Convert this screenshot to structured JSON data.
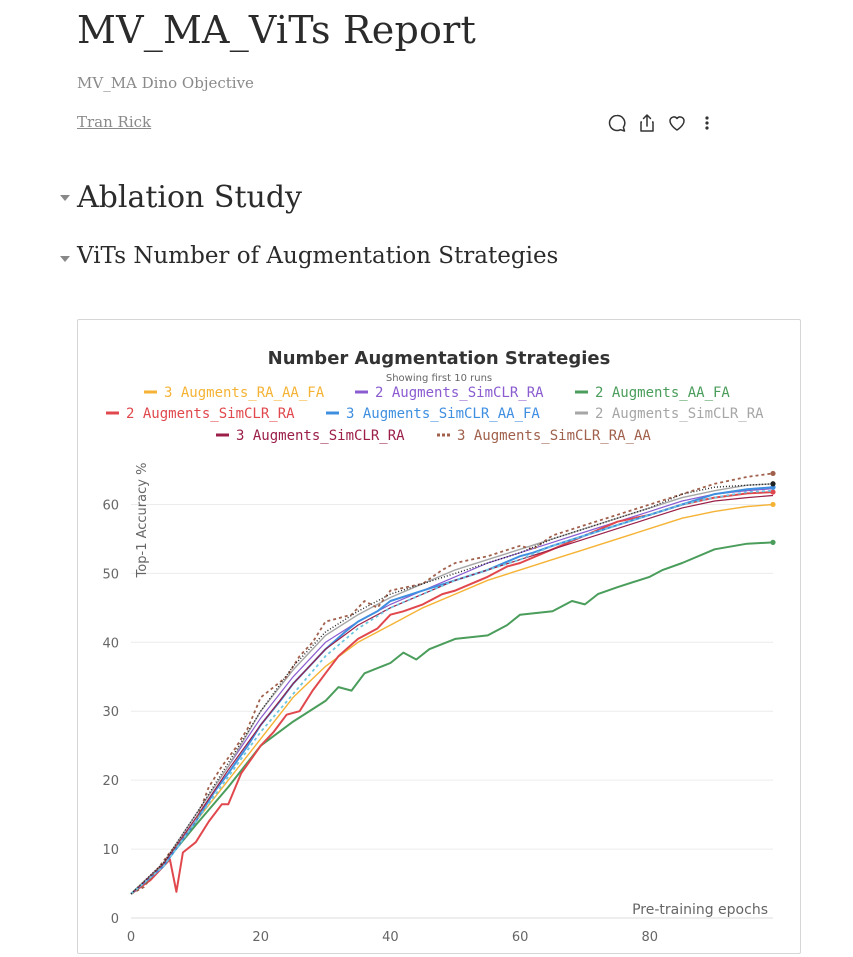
{
  "report": {
    "title": "MV_MA_ViTs Report",
    "subtitle": "MV_MA Dino Objective",
    "author": "Tran Rick"
  },
  "sections": {
    "h1": "Ablation Study",
    "h2": "ViTs Number of Augmentation Strategies"
  },
  "icons": {
    "comment": "comment-icon",
    "share": "share-icon",
    "like": "heart-icon",
    "more": "more-vertical-icon"
  },
  "chart_data": {
    "type": "line",
    "title": "Number Augmentation Strategies",
    "subtitle": "Showing first 10 runs",
    "xlabel": "Pre-training epochs",
    "ylabel": "Top-1 Accuracy %",
    "xlim": [
      0,
      99
    ],
    "ylim": [
      0,
      65
    ],
    "xticks": [
      0,
      20,
      40,
      60,
      80
    ],
    "yticks": [
      0,
      10,
      20,
      30,
      40,
      50,
      60
    ],
    "grid": true,
    "legend_position": "top",
    "series": [
      {
        "name": "3 Augments_RA_AA_FA",
        "color": "#f5b335",
        "dash": "",
        "width": 1.4,
        "legend": true,
        "end_marker": true,
        "points": [
          [
            0,
            3.5
          ],
          [
            5,
            7.5
          ],
          [
            10,
            14
          ],
          [
            15,
            20
          ],
          [
            20,
            26
          ],
          [
            25,
            32
          ],
          [
            30,
            36.5
          ],
          [
            35,
            40
          ],
          [
            40,
            42.5
          ],
          [
            45,
            45
          ],
          [
            50,
            47
          ],
          [
            55,
            49
          ],
          [
            60,
            50.5
          ],
          [
            65,
            52
          ],
          [
            70,
            53.5
          ],
          [
            75,
            55
          ],
          [
            80,
            56.5
          ],
          [
            85,
            58
          ],
          [
            90,
            59
          ],
          [
            95,
            59.7
          ],
          [
            99,
            60
          ]
        ]
      },
      {
        "name": "2 Augments_SimCLR_RA",
        "color": "#8a5cd0",
        "dash": "",
        "width": 1.2,
        "legend": true,
        "end_marker": false,
        "points": [
          [
            0,
            3.5
          ],
          [
            5,
            8
          ],
          [
            10,
            15
          ],
          [
            15,
            22
          ],
          [
            20,
            29
          ],
          [
            25,
            35
          ],
          [
            30,
            40
          ],
          [
            35,
            43
          ],
          [
            40,
            45.5
          ],
          [
            45,
            47.5
          ],
          [
            50,
            49.5
          ],
          [
            55,
            51.5
          ],
          [
            60,
            53
          ],
          [
            65,
            54.5
          ],
          [
            70,
            56
          ],
          [
            75,
            57.5
          ],
          [
            80,
            59
          ],
          [
            85,
            60.5
          ],
          [
            90,
            61.5
          ],
          [
            95,
            62
          ],
          [
            99,
            62.3
          ]
        ]
      },
      {
        "name": "2 Augments_AA_FA",
        "color": "#4a9d5b",
        "dash": "",
        "width": 2.0,
        "legend": true,
        "end_marker": true,
        "points": [
          [
            0,
            3.5
          ],
          [
            5,
            7.8
          ],
          [
            10,
            13.5
          ],
          [
            15,
            19
          ],
          [
            20,
            25
          ],
          [
            25,
            28.5
          ],
          [
            30,
            31.5
          ],
          [
            32,
            33.5
          ],
          [
            34,
            33
          ],
          [
            36,
            35.5
          ],
          [
            40,
            37
          ],
          [
            42,
            38.5
          ],
          [
            44,
            37.5
          ],
          [
            46,
            39
          ],
          [
            50,
            40.5
          ],
          [
            55,
            41
          ],
          [
            58,
            42.5
          ],
          [
            60,
            44
          ],
          [
            65,
            44.5
          ],
          [
            68,
            46
          ],
          [
            70,
            45.5
          ],
          [
            72,
            47
          ],
          [
            75,
            48
          ],
          [
            80,
            49.5
          ],
          [
            82,
            50.5
          ],
          [
            85,
            51.5
          ],
          [
            90,
            53.5
          ],
          [
            95,
            54.3
          ],
          [
            99,
            54.5
          ]
        ]
      },
      {
        "name": "2 Augments_SimCLR_RA",
        "color": "#e0484d",
        "dash": "",
        "width": 2.0,
        "legend": true,
        "end_marker": true,
        "points": [
          [
            0,
            3.5
          ],
          [
            3,
            5.5
          ],
          [
            5,
            7.5
          ],
          [
            6,
            8.5
          ],
          [
            7,
            3.8
          ],
          [
            8,
            9.5
          ],
          [
            10,
            11
          ],
          [
            12,
            14
          ],
          [
            14,
            16.5
          ],
          [
            15,
            16.5
          ],
          [
            17,
            21
          ],
          [
            20,
            25
          ],
          [
            22,
            27
          ],
          [
            24,
            29.5
          ],
          [
            26,
            30
          ],
          [
            28,
            33
          ],
          [
            30,
            35.5
          ],
          [
            32,
            38
          ],
          [
            35,
            40.5
          ],
          [
            38,
            42
          ],
          [
            40,
            44
          ],
          [
            42,
            44.5
          ],
          [
            45,
            45.5
          ],
          [
            48,
            47
          ],
          [
            50,
            47.5
          ],
          [
            55,
            49.5
          ],
          [
            58,
            51
          ],
          [
            60,
            51.5
          ],
          [
            65,
            53.5
          ],
          [
            70,
            55.5
          ],
          [
            75,
            57.5
          ],
          [
            80,
            58.5
          ],
          [
            85,
            60
          ],
          [
            90,
            61
          ],
          [
            95,
            61.6
          ],
          [
            99,
            61.8
          ]
        ]
      },
      {
        "name": "3 Augments_SimCLR_AA_FA",
        "color": "#3f8fe0",
        "dash": "",
        "width": 2.0,
        "legend": true,
        "end_marker": true,
        "points": [
          [
            0,
            3.5
          ],
          [
            5,
            7.5
          ],
          [
            10,
            14
          ],
          [
            13,
            18.5
          ],
          [
            15,
            21
          ],
          [
            18,
            25
          ],
          [
            20,
            28
          ],
          [
            23,
            31.5
          ],
          [
            25,
            34
          ],
          [
            28,
            37
          ],
          [
            30,
            39
          ],
          [
            33,
            41.5
          ],
          [
            35,
            43
          ],
          [
            38,
            44.5
          ],
          [
            40,
            46
          ],
          [
            45,
            47.5
          ],
          [
            50,
            49
          ],
          [
            55,
            50.5
          ],
          [
            60,
            52.5
          ],
          [
            62,
            53
          ],
          [
            65,
            54
          ],
          [
            70,
            55.5
          ],
          [
            75,
            57
          ],
          [
            80,
            58.5
          ],
          [
            85,
            60
          ],
          [
            90,
            61.5
          ],
          [
            95,
            62.2
          ],
          [
            99,
            62.5
          ]
        ]
      },
      {
        "name": "2 Augments_SimCLR_RA",
        "color": "#a6a6a6",
        "dash": "",
        "width": 1.4,
        "legend": true,
        "end_marker": false,
        "points": [
          [
            0,
            3.5
          ],
          [
            5,
            8
          ],
          [
            10,
            15
          ],
          [
            15,
            22
          ],
          [
            20,
            30
          ],
          [
            25,
            36
          ],
          [
            30,
            41
          ],
          [
            35,
            44
          ],
          [
            40,
            46.5
          ],
          [
            45,
            48.5
          ],
          [
            50,
            50.5
          ],
          [
            55,
            52
          ],
          [
            60,
            53.5
          ],
          [
            65,
            55
          ],
          [
            70,
            56.5
          ],
          [
            75,
            58
          ],
          [
            80,
            59.5
          ],
          [
            85,
            61
          ],
          [
            90,
            62
          ],
          [
            95,
            62.8
          ],
          [
            99,
            63
          ]
        ]
      },
      {
        "name": "3 Augments_SimCLR_RA",
        "color": "#9b1f47",
        "dash": "",
        "width": 1.2,
        "legend": true,
        "end_marker": false,
        "points": [
          [
            0,
            3.5
          ],
          [
            5,
            7.8
          ],
          [
            10,
            14.5
          ],
          [
            15,
            21.5
          ],
          [
            20,
            28
          ],
          [
            25,
            34
          ],
          [
            30,
            39
          ],
          [
            35,
            42.5
          ],
          [
            40,
            45
          ],
          [
            45,
            47
          ],
          [
            50,
            49
          ],
          [
            55,
            50.5
          ],
          [
            60,
            52
          ],
          [
            65,
            53.5
          ],
          [
            70,
            55
          ],
          [
            75,
            56.5
          ],
          [
            80,
            58
          ],
          [
            85,
            59.5
          ],
          [
            90,
            60.5
          ],
          [
            95,
            61
          ],
          [
            99,
            61.3
          ]
        ]
      },
      {
        "name": "3 Augments_SimCLR_RA_AA",
        "color": "#a0604c",
        "dash": "3,3",
        "width": 1.8,
        "legend": true,
        "end_marker": true,
        "points": [
          [
            0,
            3.5
          ],
          [
            2,
            4.5
          ],
          [
            4,
            7
          ],
          [
            6,
            9.5
          ],
          [
            8,
            11.5
          ],
          [
            10,
            14
          ],
          [
            12,
            19
          ],
          [
            14,
            22
          ],
          [
            16,
            24.5
          ],
          [
            18,
            27.5
          ],
          [
            20,
            32
          ],
          [
            22,
            33.5
          ],
          [
            24,
            35
          ],
          [
            26,
            38
          ],
          [
            28,
            40
          ],
          [
            30,
            43
          ],
          [
            32,
            43.5
          ],
          [
            34,
            44
          ],
          [
            36,
            46
          ],
          [
            38,
            45
          ],
          [
            40,
            47.5
          ],
          [
            45,
            48.5
          ],
          [
            48,
            50.5
          ],
          [
            50,
            51.5
          ],
          [
            55,
            52.5
          ],
          [
            60,
            54
          ],
          [
            62,
            53.5
          ],
          [
            65,
            55.5
          ],
          [
            70,
            57
          ],
          [
            75,
            58.5
          ],
          [
            80,
            60
          ],
          [
            85,
            61.5
          ],
          [
            90,
            63
          ],
          [
            95,
            64
          ],
          [
            99,
            64.5
          ]
        ]
      },
      {
        "name": "",
        "color": "#6ec6e0",
        "dash": "3,3",
        "width": 1.8,
        "legend": false,
        "end_marker": false,
        "points": [
          [
            0,
            3.5
          ],
          [
            5,
            7.5
          ],
          [
            10,
            14
          ],
          [
            15,
            20.5
          ],
          [
            20,
            27
          ],
          [
            25,
            32.5
          ],
          [
            30,
            38
          ],
          [
            35,
            42
          ],
          [
            40,
            45
          ],
          [
            45,
            47
          ],
          [
            50,
            49
          ],
          [
            55,
            50.5
          ],
          [
            60,
            52
          ],
          [
            65,
            54
          ],
          [
            70,
            55.5
          ],
          [
            75,
            57
          ],
          [
            80,
            58.5
          ],
          [
            85,
            60
          ],
          [
            90,
            61
          ],
          [
            95,
            61.8
          ],
          [
            99,
            62
          ]
        ]
      },
      {
        "name": "",
        "color": "#222222",
        "dash": "1,2",
        "width": 1.4,
        "legend": false,
        "end_marker": true,
        "points": [
          [
            0,
            3.5
          ],
          [
            5,
            8
          ],
          [
            10,
            15
          ],
          [
            15,
            22.5
          ],
          [
            20,
            30
          ],
          [
            25,
            36.5
          ],
          [
            30,
            41.5
          ],
          [
            35,
            44.5
          ],
          [
            40,
            47
          ],
          [
            45,
            48.5
          ],
          [
            50,
            50
          ],
          [
            55,
            51.5
          ],
          [
            60,
            53
          ],
          [
            65,
            55
          ],
          [
            70,
            56.5
          ],
          [
            75,
            58
          ],
          [
            80,
            59.5
          ],
          [
            85,
            61.5
          ],
          [
            90,
            62.5
          ],
          [
            95,
            62.8
          ],
          [
            99,
            63
          ]
        ]
      }
    ]
  }
}
